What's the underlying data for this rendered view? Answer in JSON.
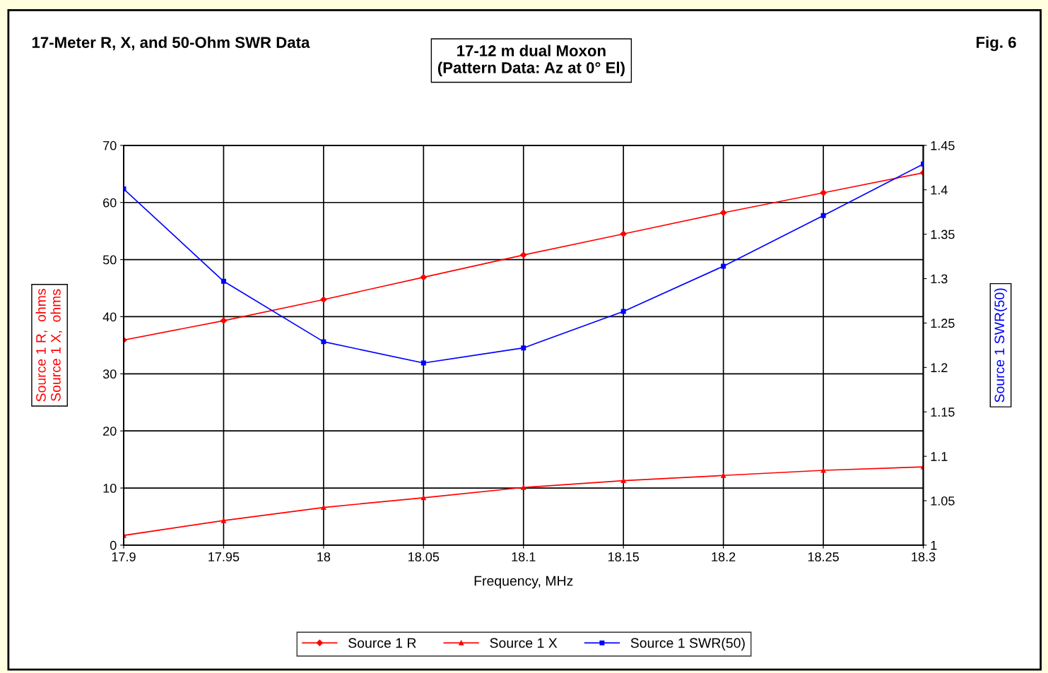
{
  "chart_data": {
    "type": "line",
    "title": "17-Meter R, X, and 50-Ohm SWR Data",
    "subtitle": "17-12 m dual Moxon\n(Pattern Data: Az at 0° El)",
    "annotations": [
      "Fig. 6"
    ],
    "xlabel": "Frequency, MHz",
    "ylabel": "Source 1 R,  ohms\nSource 1 X,  ohms",
    "y2label": "Source 1 SWR(50)",
    "x": [
      17.9,
      17.95,
      18.0,
      18.05,
      18.1,
      18.15,
      18.2,
      18.25,
      18.3
    ],
    "series": [
      {
        "name": "Source 1 R",
        "color": "#ff0000",
        "marker": "diamond",
        "values": [
          35.9,
          39.3,
          43.0,
          46.9,
          50.8,
          54.5,
          58.2,
          61.7,
          65.2
        ]
      },
      {
        "name": "Source 1 X",
        "color": "#ff0000",
        "marker": "triangle",
        "values": [
          1.7,
          4.3,
          6.6,
          8.3,
          10.1,
          11.3,
          12.2,
          13.1,
          13.7
        ]
      },
      {
        "name": "Source 1 SWR(50)",
        "color": "#0000ff",
        "marker": "square",
        "axis": "y2",
        "values": [
          1.401,
          1.297,
          1.229,
          1.205,
          1.222,
          1.263,
          1.314,
          1.371,
          1.429
        ]
      }
    ],
    "xlim": [
      17.9,
      18.3
    ],
    "xticks": [
      17.9,
      17.95,
      18,
      18.05,
      18.1,
      18.15,
      18.2,
      18.25,
      18.3
    ],
    "ylim": [
      0,
      70
    ],
    "yticks": [
      0,
      10,
      20,
      30,
      40,
      50,
      60,
      70
    ],
    "y2lim": [
      1,
      1.45
    ],
    "y2ticks": [
      1,
      1.05,
      1.1,
      1.15,
      1.2,
      1.25,
      1.3,
      1.35,
      1.4,
      1.45
    ],
    "grid": true,
    "legend": "bottom",
    "line_style": "solid"
  }
}
